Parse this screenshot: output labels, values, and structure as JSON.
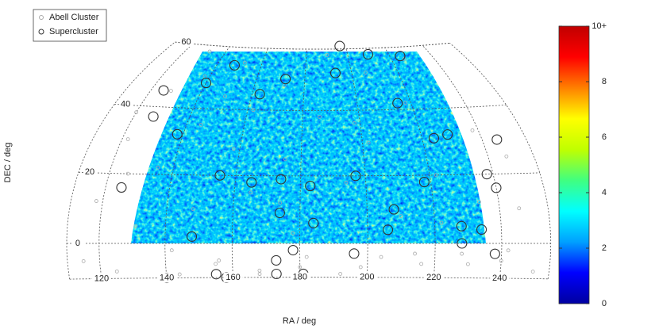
{
  "chart_data": {
    "type": "skymap",
    "projection": "hammer",
    "center_ra": 185,
    "x_label": "RA / deg",
    "y_label": "DEC / deg",
    "xlim": [
      110,
      255
    ],
    "ylim": [
      -10,
      60
    ],
    "xticks": [
      120,
      140,
      160,
      180,
      200,
      220,
      240
    ],
    "yticks": [
      0,
      20,
      40,
      60
    ],
    "grid": true,
    "legend": "upper left",
    "series": [
      {
        "name": "Abell Cluster",
        "color": "#aaaaaa",
        "marker": "small-circle",
        "x": [
          115,
          118,
          122,
          125,
          128,
          131,
          135,
          138,
          142,
          145,
          148,
          152,
          155,
          158,
          162,
          165,
          168,
          172,
          175,
          178,
          182,
          186,
          190,
          194,
          198,
          202,
          206,
          210,
          214,
          218,
          222,
          226,
          230,
          234,
          238,
          242,
          246,
          250,
          120,
          132,
          144,
          156,
          168,
          180,
          192,
          204,
          216,
          228,
          240,
          126,
          150,
          174,
          198,
          222,
          246
        ],
        "y": [
          -5,
          12,
          30,
          -8,
          45,
          5,
          22,
          50,
          -2,
          35,
          10,
          55,
          -6,
          28,
          40,
          15,
          -9,
          48,
          25,
          3,
          -4,
          38,
          58,
          18,
          -7,
          30,
          52,
          8,
          -3,
          42,
          20,
          56,
          -6,
          12,
          33,
          -2,
          25,
          -8,
          38,
          58,
          -9,
          -5,
          -8,
          -7,
          -9,
          -4,
          -6,
          -3,
          -5,
          20,
          44,
          12,
          36,
          6,
          10
        ]
      },
      {
        "name": "Supercluster",
        "color": "#333333",
        "marker": "circle",
        "x": [
          197,
          140,
          155,
          158,
          173,
          173,
          178,
          181,
          196,
          238,
          228,
          125,
          127,
          125,
          245,
          240,
          225,
          210,
          148,
          140,
          163,
          172,
          193,
          215,
          138,
          155,
          165,
          174,
          183,
          197,
          218,
          238,
          224,
          229,
          174,
          184,
          208,
          206,
          148,
          228,
          234
        ],
        "y": [
          61,
          -10,
          -9,
          -10,
          -9,
          -5,
          -2,
          -9,
          -3,
          -3,
          0,
          45,
          37,
          16,
          30,
          16,
          57,
          58,
          54,
          48,
          45,
          50,
          52,
          42,
          32,
          20,
          18,
          19,
          17,
          20,
          18,
          20,
          31,
          32,
          9,
          6,
          10,
          4,
          2,
          5,
          4
        ]
      }
    ],
    "colorbar": {
      "clim": [
        0,
        10
      ],
      "cticks": [
        0,
        2,
        4,
        6,
        8,
        {
          "value": 10,
          "label": "10+"
        }
      ],
      "colors": [
        "#0000a0",
        "#0000ff",
        "#00a0ff",
        "#00ffff",
        "#40ff80",
        "#c0ff00",
        "#ffff00",
        "#ff8000",
        "#ff0000",
        "#c00000"
      ]
    }
  }
}
